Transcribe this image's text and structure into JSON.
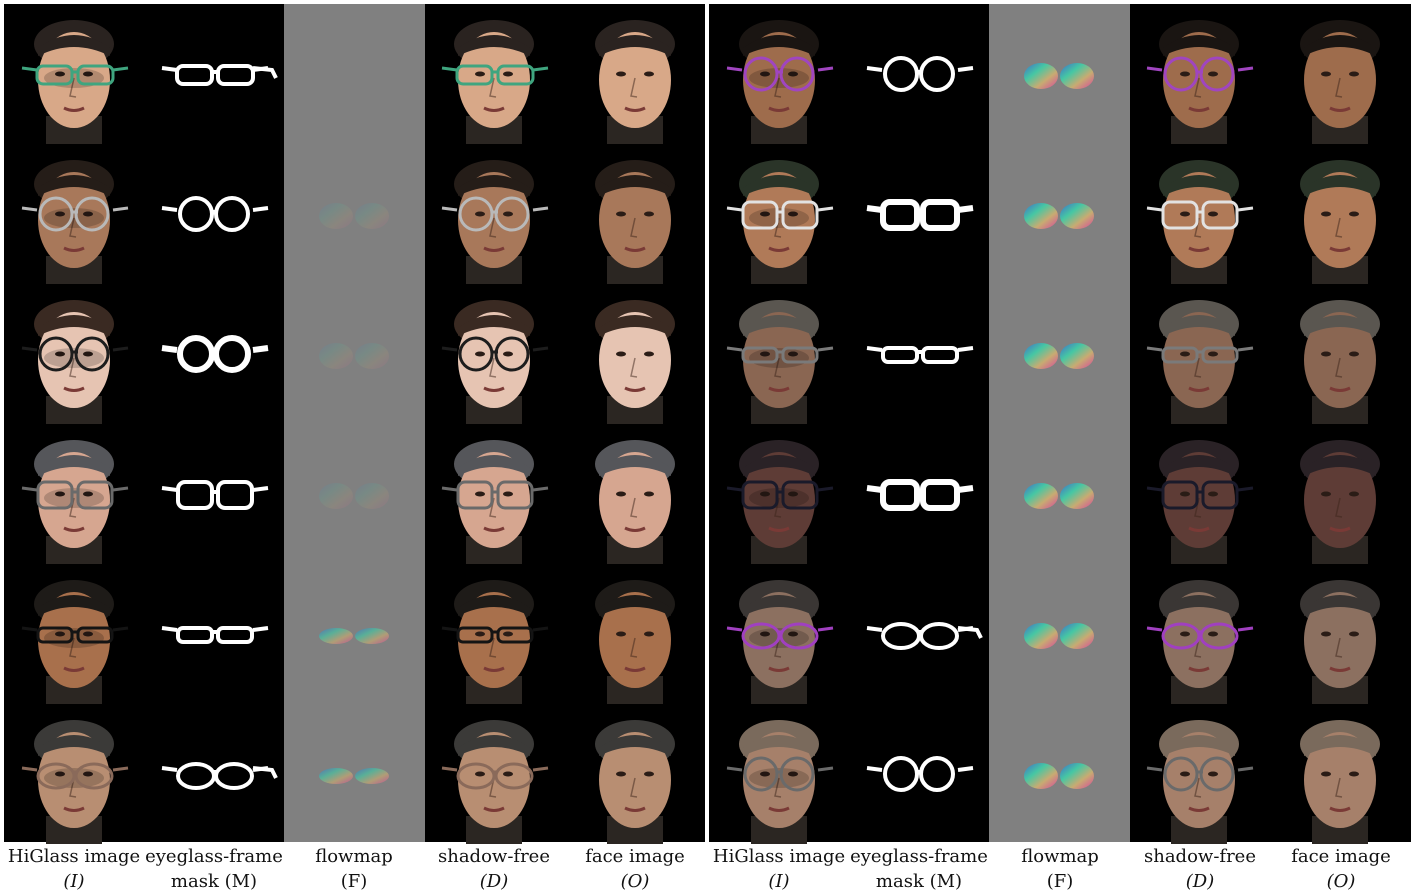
{
  "rows_per_panel": 6,
  "panels": [
    {
      "columns": [
        {
          "kind": "input"
        },
        {
          "kind": "mask"
        },
        {
          "kind": "flow"
        },
        {
          "kind": "shadowfree"
        },
        {
          "kind": "face"
        }
      ],
      "rows": [
        {
          "skin": "#d8a888",
          "hair": "#2a2320",
          "glasses": "#3fa57f",
          "style": "rect",
          "lenses": "none",
          "mask": "wide"
        },
        {
          "skin": "#a8785a",
          "hair": "#251d18",
          "glasses": "#b9b9b9",
          "style": "round",
          "lenses": "faint",
          "mask": "plain"
        },
        {
          "skin": "#e6c4b2",
          "hair": "#3a2a22",
          "glasses": "#1d1d1d",
          "style": "round",
          "lenses": "faint",
          "mask": "thick"
        },
        {
          "skin": "#d6a690",
          "hair": "#55565a",
          "glasses": "#6a6a6a",
          "style": "square",
          "lenses": "faint",
          "mask": "plain"
        },
        {
          "skin": "#a8704c",
          "hair": "#1e1b18",
          "glasses": "#141414",
          "style": "narrow",
          "lenses": "small",
          "mask": "narrow"
        },
        {
          "skin": "#b88e72",
          "hair": "#3b3a38",
          "glasses": "#8a6a5a",
          "style": "oval",
          "lenses": "small",
          "mask": "temple"
        }
      ]
    },
    {
      "columns": [
        {
          "kind": "input"
        },
        {
          "kind": "mask"
        },
        {
          "kind": "flow"
        },
        {
          "kind": "shadowfree"
        },
        {
          "kind": "face"
        }
      ],
      "rows": [
        {
          "skin": "#9e6c4c",
          "hair": "#1a1512",
          "glasses": "#a045c0",
          "style": "round",
          "lenses": "bright",
          "mask": "plain"
        },
        {
          "skin": "#b07a58",
          "hair": "#2a3428",
          "glasses": "#e2e2e2",
          "style": "square",
          "lenses": "bright",
          "mask": "thick"
        },
        {
          "skin": "#8a6652",
          "hair": "#5a5650",
          "glasses": "#7a7a7a",
          "style": "narrow",
          "lenses": "bright",
          "mask": "narrow"
        },
        {
          "skin": "#5e3c36",
          "hair": "#2a2226",
          "glasses": "#1a1a2a",
          "style": "square",
          "lenses": "bright",
          "mask": "thick"
        },
        {
          "skin": "#8c7060",
          "hair": "#3a3634",
          "glasses": "#a040c0",
          "style": "oval",
          "lenses": "bright",
          "mask": "temple"
        },
        {
          "skin": "#a6806a",
          "hair": "#7a6a5c",
          "glasses": "#6a6a6a",
          "style": "round",
          "lenses": "bright",
          "mask": "plain"
        }
      ]
    }
  ],
  "captions": [
    {
      "line1": "HiGlass image",
      "line2": "(I)"
    },
    {
      "line1": "eyeglass-frame",
      "line2": "mask (M)"
    },
    {
      "line1": "flowmap",
      "line2": "(F)"
    },
    {
      "line1": "shadow-free",
      "line2": "(D)"
    },
    {
      "line1": "face image",
      "line2": "(O)"
    },
    {
      "line1": "HiGlass image",
      "line2": "(I)"
    },
    {
      "line1": "eyeglass-frame",
      "line2": "mask (M)"
    },
    {
      "line1": "flowmap",
      "line2": "(F)"
    },
    {
      "line1": "shadow-free",
      "line2": "(D)"
    },
    {
      "line1": "face image",
      "line2": "(O)"
    }
  ]
}
